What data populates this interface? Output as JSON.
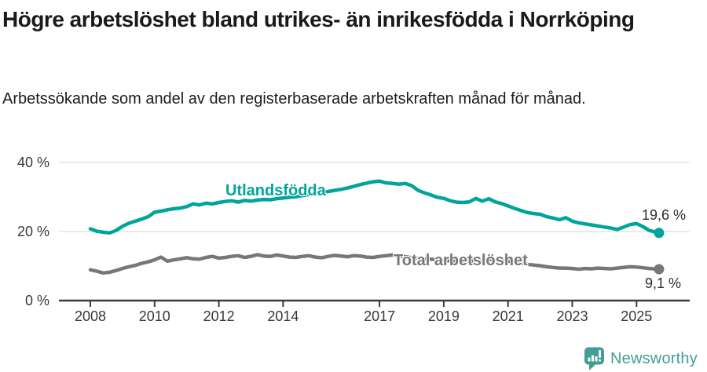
{
  "header": {
    "title": "Högre arbetslöshet bland utrikes- än inrikesfödda i Norrköping",
    "subtitle": "Arbetssökande som andel av den registerbaserade arbetskraften månad för månad."
  },
  "chart_data": {
    "type": "line",
    "title": "Högre arbetslöshet bland utrikes- än inrikesfödda i Norrköping",
    "subtitle": "Arbetssökande som andel av den registerbaserade arbetskraften månad för månad.",
    "xlabel": "",
    "ylabel": "",
    "x_unit": "year (monthly observations)",
    "ylim": [
      0,
      44
    ],
    "xlim": [
      2007.05,
      2026.6
    ],
    "grid": "horizontal gridlines at 20% and 40%",
    "legend": "inline labels next to lines",
    "x_ticks": [
      2008,
      2010,
      2012,
      2014,
      2017,
      2019,
      2021,
      2023,
      2025
    ],
    "y_ticks": [
      {
        "v": 0,
        "label": "0 %"
      },
      {
        "v": 20,
        "label": "20 %"
      },
      {
        "v": 40,
        "label": "40 %"
      }
    ],
    "x": [
      2008,
      2008.2,
      2008.4,
      2008.6,
      2008.8,
      2009,
      2009.2,
      2009.4,
      2009.6,
      2009.8,
      2010,
      2010.2,
      2010.4,
      2010.6,
      2010.8,
      2011,
      2011.2,
      2011.4,
      2011.6,
      2011.8,
      2012,
      2012.2,
      2012.4,
      2012.6,
      2012.8,
      2013,
      2013.2,
      2013.4,
      2013.6,
      2013.8,
      2014,
      2014.2,
      2014.4,
      2014.6,
      2014.8,
      2015,
      2015.2,
      2015.4,
      2015.6,
      2015.8,
      2016,
      2016.2,
      2016.4,
      2016.6,
      2016.8,
      2017,
      2017.2,
      2017.4,
      2017.6,
      2017.8,
      2018,
      2018.2,
      2018.4,
      2018.6,
      2018.8,
      2019,
      2019.2,
      2019.4,
      2019.6,
      2019.8,
      2020,
      2020.2,
      2020.4,
      2020.6,
      2020.8,
      2021,
      2021.2,
      2021.4,
      2021.6,
      2021.8,
      2022,
      2022.2,
      2022.4,
      2022.6,
      2022.8,
      2023,
      2023.2,
      2023.4,
      2023.6,
      2023.8,
      2024,
      2024.2,
      2024.4,
      2024.6,
      2024.8,
      2025,
      2025.2,
      2025.4,
      2025.7
    ],
    "series": [
      {
        "name": "Utlandsfödda",
        "color": "#00a49b",
        "end_value_label": "19,6 %",
        "end_value": 19.6,
        "values": [
          20.8,
          20.1,
          19.8,
          19.6,
          20.3,
          21.5,
          22.4,
          23,
          23.6,
          24.3,
          25.6,
          25.9,
          26.3,
          26.6,
          26.8,
          27.2,
          28,
          27.7,
          28.2,
          28,
          28.4,
          28.7,
          28.9,
          28.5,
          29,
          28.8,
          29.1,
          29.3,
          29.2,
          29.5,
          29.7,
          29.9,
          30.1,
          30.4,
          30.7,
          31,
          31.3,
          31.6,
          31.9,
          32.2,
          32.6,
          33.1,
          33.6,
          34,
          34.4,
          34.6,
          34.1,
          33.9,
          33.7,
          33.9,
          33.3,
          31.9,
          31.2,
          30.6,
          29.9,
          29.6,
          28.9,
          28.5,
          28.4,
          28.6,
          29.6,
          28.8,
          29.5,
          28.6,
          28.1,
          27.4,
          26.7,
          26.1,
          25.5,
          25.2,
          25,
          24.3,
          23.9,
          23.4,
          24,
          23,
          22.5,
          22.2,
          21.9,
          21.6,
          21.3,
          21,
          20.6,
          21.3,
          22,
          22.3,
          21.4,
          20.3,
          19.6
        ]
      },
      {
        "name": "Total arbetslöshet",
        "color": "#77777b",
        "end_value_label": "9,1 %",
        "end_value": 9.1,
        "values": [
          8.9,
          8.5,
          8,
          8.2,
          8.7,
          9.3,
          9.8,
          10.2,
          10.8,
          11.2,
          11.8,
          12.6,
          11.4,
          11.8,
          12.1,
          12.4,
          12.1,
          12,
          12.5,
          12.8,
          12.3,
          12.5,
          12.8,
          13,
          12.5,
          12.8,
          13.3,
          12.9,
          12.8,
          13.2,
          12.9,
          12.6,
          12.5,
          12.8,
          13,
          12.6,
          12.4,
          12.8,
          13.1,
          12.9,
          12.7,
          13,
          12.9,
          12.6,
          12.5,
          12.8,
          13,
          13.2,
          12.9,
          12.7,
          12.4,
          12.3,
          12.1,
          12,
          11.8,
          11.6,
          11.5,
          11.4,
          11.3,
          11.4,
          11.5,
          11.7,
          11.9,
          11.8,
          11.6,
          11.4,
          11.1,
          10.8,
          10.5,
          10.3,
          10.1,
          9.8,
          9.6,
          9.4,
          9.4,
          9.3,
          9.1,
          9.3,
          9.2,
          9.4,
          9.3,
          9.2,
          9.4,
          9.6,
          9.8,
          9.7,
          9.5,
          9.3,
          9.1
        ]
      }
    ],
    "style": {
      "gridline_color": "#e4e4e4",
      "axis_color": "#3c3c3c",
      "tick_label_color": "#383838"
    }
  },
  "footer": {
    "brand": "Newsworthy",
    "brand_color": "#419e96",
    "logo_icon": "bar-chart-speech-bubble"
  }
}
